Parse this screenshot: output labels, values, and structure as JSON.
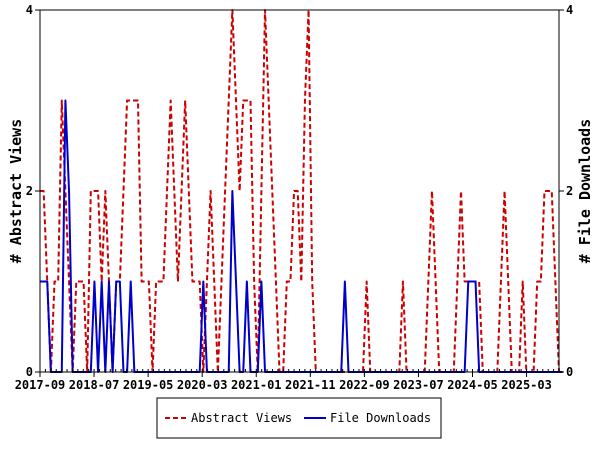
{
  "chart_data": {
    "type": "line",
    "title": "",
    "xlabel": "",
    "ylabel_left": "# Abstract Views",
    "ylabel_right": "# File Downloads",
    "ylim": [
      0,
      4
    ],
    "y_ticks_left": [
      "0",
      "2",
      "4"
    ],
    "y_ticks_right": [
      "0",
      "2",
      "4"
    ],
    "x_ticks": [
      "2017-09",
      "2018-07",
      "2019-05",
      "2020-03",
      "2021-01",
      "2021-11",
      "2022-09",
      "2023-07",
      "2024-05",
      "2025-03"
    ],
    "x_start": "2017-09",
    "x_end": "2025-09",
    "grid": false,
    "legend_position": "bottom",
    "series": [
      {
        "name": "Abstract Views",
        "color": "#cc0000",
        "dash": "dashed",
        "values": [
          2,
          2,
          1,
          0,
          1,
          1,
          3,
          2,
          1,
          0,
          1,
          1,
          1,
          0,
          2,
          2,
          2,
          1,
          2,
          1,
          0,
          1,
          1,
          2,
          3,
          3,
          3,
          3,
          1,
          1,
          1,
          0,
          1,
          1,
          1,
          2,
          3,
          2,
          1,
          2,
          3,
          2,
          1,
          1,
          1,
          0,
          1,
          2,
          1,
          0,
          1,
          2,
          3,
          4,
          3,
          2,
          3,
          3,
          3,
          1,
          0,
          2,
          4,
          3,
          2,
          1,
          0,
          0,
          1,
          1,
          2,
          2,
          1,
          3,
          4,
          1,
          0,
          0,
          0,
          0,
          0,
          0,
          0,
          0,
          0,
          0,
          0,
          0,
          0,
          0,
          1,
          0,
          0,
          0,
          0,
          0,
          0,
          0,
          0,
          0,
          1,
          0,
          0,
          0,
          0,
          0,
          0,
          1,
          2,
          1,
          0,
          0,
          0,
          0,
          0,
          1,
          2,
          1,
          1,
          1,
          1,
          1,
          0,
          0,
          0,
          0,
          0,
          1,
          2,
          1,
          0,
          0,
          0,
          1,
          0,
          0,
          0,
          1,
          1,
          2,
          2,
          2,
          1,
          0
        ]
      },
      {
        "name": "File Downloads",
        "color": "#0000cc",
        "dash": "solid",
        "values": [
          1,
          1,
          1,
          0,
          0,
          0,
          0,
          3,
          2,
          0,
          0,
          0,
          0,
          0,
          0,
          1,
          0,
          1,
          0,
          1,
          0,
          1,
          1,
          0,
          0,
          1,
          0,
          0,
          0,
          0,
          0,
          0,
          0,
          0,
          0,
          0,
          0,
          0,
          0,
          0,
          0,
          0,
          0,
          0,
          0,
          1,
          0,
          0,
          0,
          0,
          0,
          0,
          0,
          2,
          1,
          0,
          0,
          1,
          0,
          0,
          0,
          1,
          0,
          0,
          0,
          0,
          0,
          0,
          0,
          0,
          0,
          0,
          0,
          0,
          0,
          0,
          0,
          0,
          0,
          0,
          0,
          0,
          0,
          0,
          1,
          0,
          0,
          0,
          0,
          0,
          0,
          0,
          0,
          0,
          0,
          0,
          0,
          0,
          0,
          0,
          0,
          0,
          0,
          0,
          0,
          0,
          0,
          0,
          0,
          0,
          0,
          0,
          0,
          0,
          0,
          0,
          0,
          0,
          1,
          1,
          1,
          0,
          0,
          0,
          0,
          0,
          0,
          0,
          0,
          0,
          0,
          0,
          0,
          0,
          0,
          0,
          0,
          0,
          0,
          0,
          0,
          0,
          0,
          0,
          0
        ]
      }
    ]
  }
}
